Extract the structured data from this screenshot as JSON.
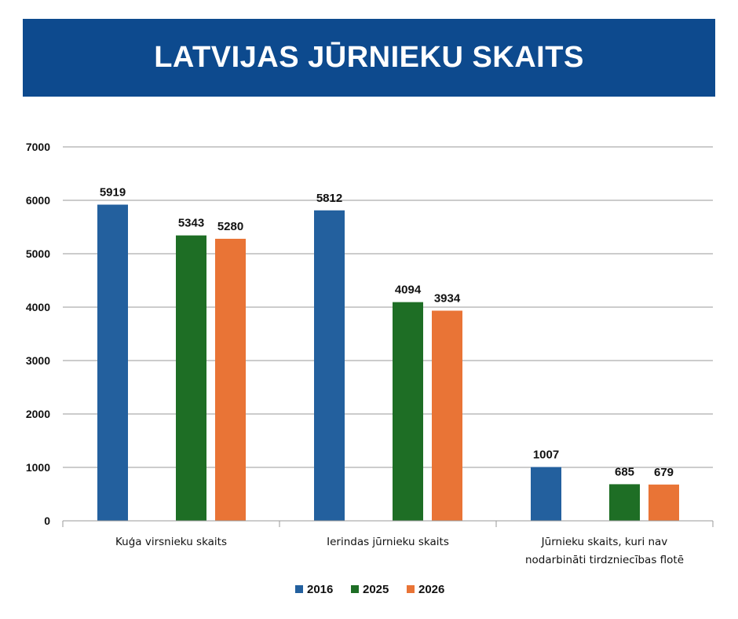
{
  "header": {
    "title": "LATVIJAS JŪRNIEKU SKAITS"
  },
  "chart_data": {
    "type": "bar",
    "categories": [
      [
        "Kuģa virsnieku skaits"
      ],
      [
        "Ierindas jūrnieku skaits"
      ],
      [
        "Jūrnieku skaits, kuri nav",
        "nodarbināti tirdzniecības flotē"
      ]
    ],
    "series": [
      {
        "name": "2016",
        "color": "#23609e",
        "values": [
          5919,
          5812,
          1007
        ]
      },
      {
        "name": "2025",
        "color": "#1e6e25",
        "values": [
          5343,
          4094,
          685
        ]
      },
      {
        "name": "2026",
        "color": "#e97436",
        "values": [
          5280,
          3934,
          679
        ]
      }
    ],
    "ylim": [
      0,
      7000
    ],
    "yticks": [
      0,
      1000,
      2000,
      3000,
      4000,
      5000,
      6000,
      7000
    ],
    "grid": true,
    "legend": "bottom-center"
  }
}
